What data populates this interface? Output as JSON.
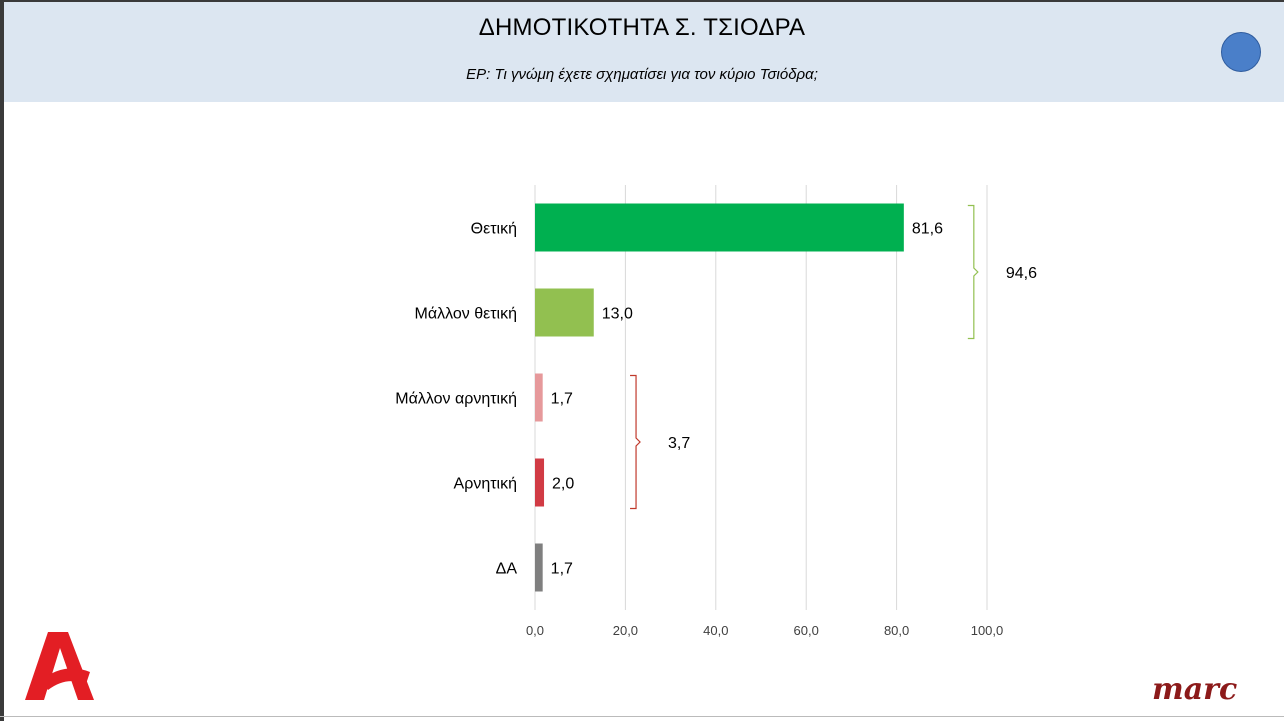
{
  "header": {
    "title": "ΔΗΜΟΤΙΚΟΤΗΤΑ Σ. ΤΣΙΟΔΡΑ",
    "subtitle": "ΕΡ: Τι γνώμη έχετε σχηματίσει για τον κύριο Τσιόδρα;"
  },
  "logos": {
    "alpha": "alpha-logo-icon",
    "marc": "marc"
  },
  "chart_data": {
    "type": "bar",
    "orientation": "horizontal",
    "categories": [
      "Θετική",
      "Μάλλον θετική",
      "Μάλλον αρνητική",
      "Αρνητική",
      "ΔΑ"
    ],
    "values": [
      81.6,
      13.0,
      1.7,
      2.0,
      1.7
    ],
    "value_labels": [
      "81,6",
      "13,0",
      "1,7",
      "2,0",
      "1,7"
    ],
    "colors": [
      "#00b050",
      "#92c050",
      "#e6999b",
      "#d13b44",
      "#7f7f7f"
    ],
    "xlim": [
      0,
      100
    ],
    "x_ticks": [
      0,
      20,
      40,
      60,
      80,
      100
    ],
    "x_tick_labels": [
      "0,0",
      "20,0",
      "40,0",
      "60,0",
      "80,0",
      "100,0"
    ],
    "grid": true,
    "groups": [
      {
        "label": "94,6",
        "value": 94.6,
        "from": 0,
        "to": 1,
        "color": "#92c050"
      },
      {
        "label": "3,7",
        "value": 3.7,
        "from": 2,
        "to": 3,
        "color": "#c0392b"
      }
    ]
  }
}
